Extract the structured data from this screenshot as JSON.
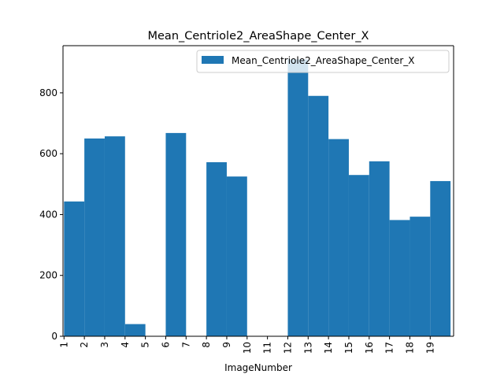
{
  "chart_data": {
    "type": "bar",
    "title": "Mean_Centriole2_AreaShape_Center_X",
    "xlabel": "ImageNumber",
    "ylabel": "",
    "x_ticks": [
      "1",
      "2",
      "3",
      "4",
      "5",
      "6",
      "7",
      "8",
      "9",
      "10",
      "11",
      "12",
      "13",
      "14",
      "15",
      "16",
      "17",
      "18",
      "19"
    ],
    "y_ticks": [
      "0",
      "200",
      "400",
      "600",
      "800"
    ],
    "ylim": [
      0,
      955
    ],
    "xlim": [
      0.95,
      20.15
    ],
    "grid": false,
    "legend_position": "top-right",
    "series": [
      {
        "name": "Mean_Centriole2_AreaShape_Center_X",
        "color": "#1f77b4",
        "bars": [
          {
            "start": 1,
            "end": 2,
            "value": 443
          },
          {
            "start": 2,
            "end": 3,
            "value": 650
          },
          {
            "start": 3,
            "end": 4,
            "value": 657
          },
          {
            "start": 4,
            "end": 5,
            "value": 40
          },
          {
            "start": 6,
            "end": 7,
            "value": 668
          },
          {
            "start": 8,
            "end": 9,
            "value": 572
          },
          {
            "start": 9,
            "end": 10,
            "value": 525
          },
          {
            "start": 12,
            "end": 13,
            "value": 910
          },
          {
            "start": 13,
            "end": 14,
            "value": 790
          },
          {
            "start": 14,
            "end": 15,
            "value": 648
          },
          {
            "start": 15,
            "end": 16,
            "value": 530
          },
          {
            "start": 16,
            "end": 17,
            "value": 575
          },
          {
            "start": 17,
            "end": 18,
            "value": 382
          },
          {
            "start": 18,
            "end": 19,
            "value": 393
          },
          {
            "start": 19,
            "end": 20,
            "value": 510
          }
        ]
      }
    ]
  }
}
